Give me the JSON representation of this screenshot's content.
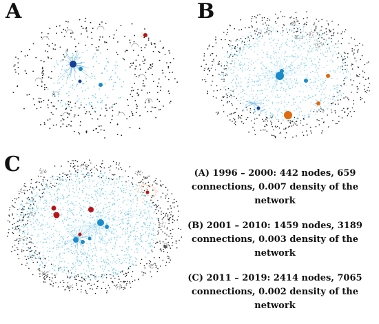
{
  "panels": [
    {
      "letter": "A",
      "caption_line1": "(A) 1996 – 2000: 442 nodes, 659",
      "caption_line2": "connections, 0.007 density of the network"
    },
    {
      "letter": "B",
      "caption_line1": "(B) 2001 – 2010: 1459 nodes, 3189",
      "caption_line2": "connections, 0.003 density of the network"
    },
    {
      "letter": "C",
      "caption_line1": "(C) 2011 – 2019: 2414 nodes, 7065",
      "caption_line2": "connections, 0.002 density of the network"
    }
  ],
  "colors": {
    "isolated": "#222222",
    "edge_light": "#9fd6ea",
    "node_light": "#4bb8dc",
    "hub_blue": "#1a8cc8",
    "hub_dark": "#153e96",
    "hub_red": "#b81416",
    "hub_orange": "#e06a10",
    "orange_light": "#f2a06a",
    "gray_cluster": "#8a8a8a"
  }
}
